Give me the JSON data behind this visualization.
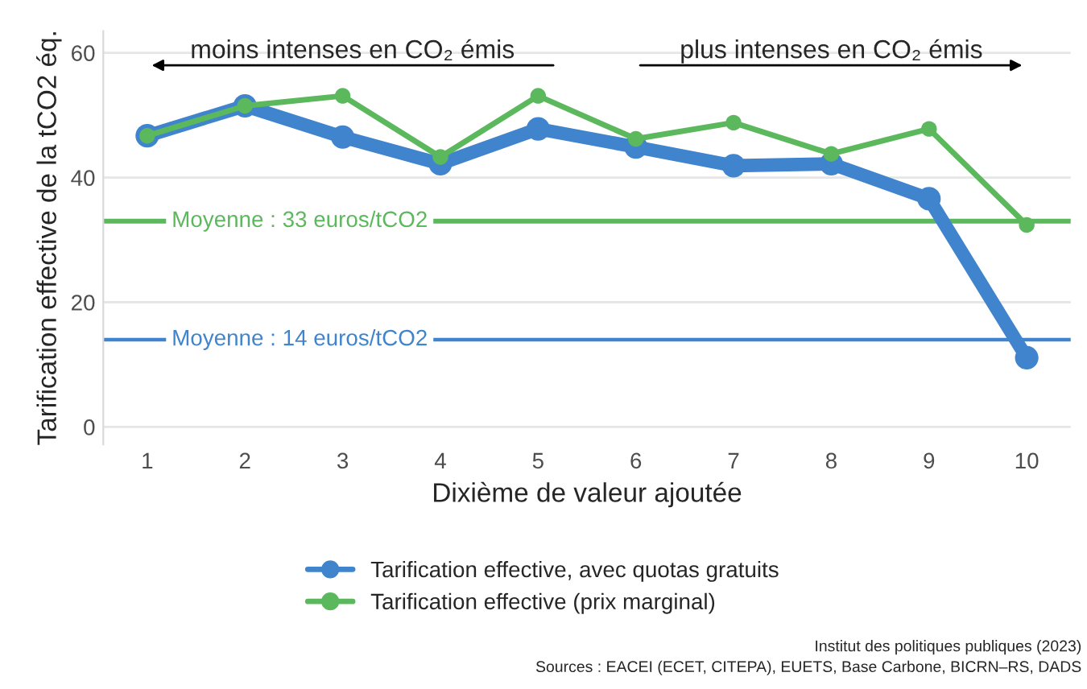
{
  "chart_data": {
    "type": "line",
    "xlabel": "Dixième de valeur ajoutée",
    "ylabel": "Tarification effective de la tCO2 éq.",
    "categories": [
      "1",
      "2",
      "3",
      "4",
      "5",
      "6",
      "7",
      "8",
      "9",
      "10"
    ],
    "series": [
      {
        "name": "Tarification effective, avec quotas gratuits",
        "color": "#3f84cc",
        "values": [
          46.7,
          51.5,
          46.5,
          42.2,
          47.8,
          44.9,
          41.9,
          42.2,
          36.6,
          11.1
        ]
      },
      {
        "name": "Tarification effective (prix marginal)",
        "color": "#5cb85c",
        "values": [
          46.7,
          51.5,
          53.1,
          43.3,
          53.1,
          46.2,
          48.8,
          43.8,
          47.8,
          32.4
        ]
      }
    ],
    "ylim": [
      -2.8,
      63.5
    ],
    "yticks": [
      0,
      20,
      40,
      60
    ],
    "grid": "y",
    "marker": "circle",
    "line_style": "solid",
    "legend": "bottom",
    "ref_lines": [
      {
        "axis": "y",
        "value": 33,
        "label": "Moyenne : 33 euros/tCO2",
        "color": "#5cb85c"
      },
      {
        "axis": "y",
        "value": 14,
        "label": "Moyenne : 14 euros/tCO2",
        "color": "#3f84cc"
      }
    ],
    "annotations": [
      "moins intenses en CO₂ émis",
      "plus intenses en CO₂ émis",
      "Institut des politiques publiques (2023)",
      "Sources : EACEI (ECET, CITEPA), EUETS, Base Carbone, BICRN–RS, DADS"
    ]
  }
}
